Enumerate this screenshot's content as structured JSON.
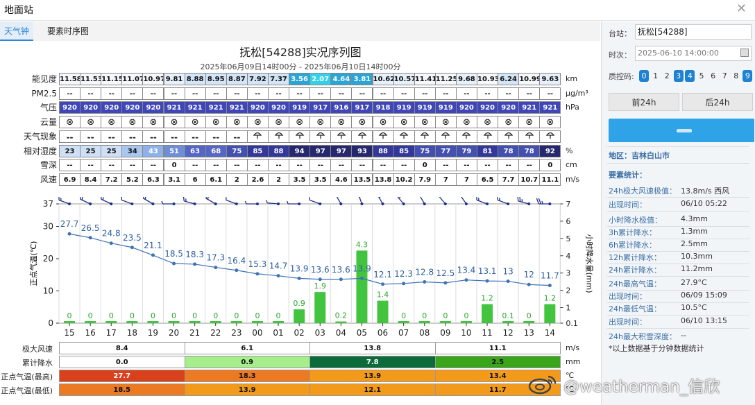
{
  "window": {
    "title": "地面站"
  },
  "tabs": [
    "天气钟",
    "要素时序图"
  ],
  "chart_title": "抚松[54288]实况序列图",
  "chart_subtitle": "2025年06月09日14时00分 - 2025年06月10日14时00分",
  "hours": [
    "15",
    "16",
    "17",
    "18",
    "19",
    "20",
    "21",
    "22",
    "23",
    "00",
    "01",
    "02",
    "03",
    "04",
    "05",
    "06",
    "07",
    "08",
    "09",
    "10",
    "11",
    "12",
    "13",
    "14"
  ],
  "rows": [
    {
      "label": "能见度",
      "unit": "km",
      "kind": "vis",
      "values": [
        "11.58",
        "11.53",
        "11.15",
        "11.07",
        "10.97",
        "9.81",
        "8.88",
        "8.95",
        "8.87",
        "7.92",
        "7.37",
        "3.56",
        "2.07",
        "4.64",
        "3.81",
        "10.62",
        "10.57",
        "11.41",
        "11.25",
        "9.68",
        "10.93",
        "6.24",
        "10.99",
        "9.63"
      ]
    },
    {
      "label": "PM2.5",
      "unit": "μg/m³",
      "kind": "plain",
      "values": [
        "--",
        "--",
        "--",
        "--",
        "--",
        "--",
        "--",
        "--",
        "--",
        "--",
        "--",
        "--",
        "--",
        "--",
        "--",
        "--",
        "--",
        "--",
        "--",
        "--",
        "--",
        "--",
        "--",
        "--"
      ]
    },
    {
      "label": "气压",
      "unit": "hPa",
      "kind": "pres",
      "values": [
        "920",
        "920",
        "920",
        "920",
        "920",
        "921",
        "921",
        "921",
        "921",
        "920",
        "920",
        "919",
        "917",
        "916",
        "917",
        "918",
        "919",
        "919",
        "919",
        "920",
        "920",
        "920",
        "921",
        "921"
      ]
    },
    {
      "label": "云量",
      "unit": "",
      "kind": "cloud",
      "values": [
        "⊗",
        "⊗",
        "⊗",
        "⊗",
        "⊗",
        "⊗",
        "⊗",
        "⊗",
        "⊗",
        "⊗",
        "⊗",
        "⊗",
        "⊗",
        "⊗",
        "⊗",
        "⊗",
        "⊗",
        "⊗",
        "⊗",
        "⊗",
        "⊗",
        "⊗",
        "⊗",
        "⊗"
      ]
    },
    {
      "label": "天气现象",
      "unit": "",
      "kind": "wx",
      "values": [
        "--",
        "--",
        "--",
        "--",
        "--",
        "--",
        "--",
        "--",
        "--",
        "rain",
        "rain",
        "rain",
        "rain",
        "rain",
        "rain",
        "rain",
        "rain",
        "rain",
        "rain",
        "rain",
        "rain",
        "rain",
        "rain",
        "rain"
      ]
    },
    {
      "label": "相对湿度",
      "unit": "%",
      "kind": "rh",
      "values": [
        "23",
        "25",
        "25",
        "34",
        "43",
        "51",
        "63",
        "68",
        "75",
        "85",
        "88",
        "94",
        "97",
        "97",
        "93",
        "88",
        "85",
        "75",
        "77",
        "79",
        "81",
        "78",
        "78",
        "92"
      ]
    },
    {
      "label": "雪深",
      "unit": "cm",
      "kind": "plain",
      "values": [
        "--",
        "--",
        "--",
        "--",
        "--",
        "0",
        "--",
        "--",
        "--",
        "--",
        "--",
        "--",
        "--",
        "--",
        "--",
        "--",
        "--",
        "0",
        "--",
        "--",
        "--",
        "--",
        "--",
        "0"
      ]
    },
    {
      "label": "风速",
      "unit": "m/s",
      "kind": "plain",
      "values": [
        "6.9",
        "8.4",
        "7.2",
        "5.2",
        "6.3",
        "3.1",
        "6",
        "6.1",
        "2",
        "2.6",
        "2",
        "3.5",
        "3.5",
        "4.6",
        "13.5",
        "13.8",
        "10.2",
        "7.9",
        "7",
        "7",
        "6.5",
        "7.7",
        "10.7",
        "11.1"
      ]
    }
  ],
  "chart_data": {
    "type": "line",
    "x": [
      "15",
      "16",
      "17",
      "18",
      "19",
      "20",
      "21",
      "22",
      "23",
      "00",
      "01",
      "02",
      "03",
      "04",
      "05",
      "06",
      "07",
      "08",
      "09",
      "10",
      "11",
      "12",
      "13",
      "14"
    ],
    "series": [
      {
        "values": [
          27.7,
          26.5,
          24.8,
          23.5,
          21.1,
          18.5,
          18.3,
          17.3,
          16.4,
          15.3,
          14.7,
          13.9,
          13.6,
          13.6,
          13.9,
          12.1,
          12.3,
          12.8,
          12.5,
          13.4,
          13.1,
          13,
          12,
          11.7
        ]
      },
      {
        "values": [
          0,
          0,
          0,
          0,
          0,
          0,
          0,
          0,
          0,
          0,
          0,
          0.9,
          1.9,
          0.2,
          4.3,
          1.4,
          0,
          0,
          0,
          0,
          1.2,
          0.1,
          0,
          1.2
        ]
      }
    ],
    "y_left": {
      "label": "正点气温(℃)",
      "ticks": [
        "0",
        "10",
        "20",
        "30",
        "37"
      ],
      "range": [
        0,
        37
      ]
    },
    "y_right": {
      "label": "小时降水量(mm)",
      "ticks": [
        "0.1",
        "1",
        "2",
        "3",
        "4",
        "5",
        "6",
        "7"
      ],
      "range": [
        0.1,
        7
      ]
    },
    "wind_dir": [
      290,
      295,
      295,
      290,
      300,
      270,
      285,
      300,
      290,
      270,
      275,
      270,
      290,
      330,
      340,
      330,
      320,
      330,
      320,
      325,
      290,
      290,
      285,
      270
    ],
    "colors": {
      "temp": "#3e73b6",
      "precip": "#43c43f"
    }
  },
  "bottom": {
    "rows": [
      {
        "label": "极大风速",
        "unit": "m/s",
        "cells": [
          "8.4",
          "6.1",
          "13.8",
          "11.1"
        ],
        "colors": [
          "#ffffff",
          "#ffffff",
          "#ffffff",
          "#ffffff"
        ]
      },
      {
        "label": "累计降水",
        "unit": "mm",
        "cells": [
          "0.0",
          "0.9",
          "7.8",
          "2.5"
        ],
        "colors": [
          "#ffffff",
          "#a6ee8c",
          "#0c6b3a",
          "#3aa51a"
        ]
      },
      {
        "label": "正点气温(最高)",
        "unit": "℃",
        "cells": [
          "27.7",
          "18.3",
          "13.9",
          "13.4"
        ],
        "colors": [
          "#d9401c",
          "#eb7a22",
          "#f39a1a",
          "#f39a1a"
        ]
      },
      {
        "label": "正点气温(最低)",
        "unit": "℃",
        "cells": [
          "18.5",
          "13.9",
          "12.1",
          "11.7"
        ],
        "colors": [
          "#eb7a22",
          "#f39a1a",
          "#f39a1a",
          "#f39a1a"
        ]
      }
    ]
  },
  "side": {
    "station_label": "台站：",
    "station_value": "抚松[54288]",
    "time_label": "时次：",
    "time_value": "2025-06-10 14:00:00",
    "qc_label": "质控码:",
    "qc_codes": [
      "0",
      "1",
      "2",
      "3",
      "4",
      "5",
      "6",
      "7",
      "8",
      "9"
    ],
    "qc_on": [
      "0",
      "3",
      "4",
      "9"
    ],
    "prev_btn": "前24h",
    "next_btn": "后24h",
    "region_label": "地区：吉林白山市",
    "stats_title": "要素统计：",
    "stats": [
      {
        "k": "24h极大风速极值：",
        "v": "13.8m/s 西风"
      },
      {
        "k": "出现时间：",
        "v": "06/10 05:22"
      },
      {
        "k": "小时降水极值：",
        "v": "4.3mm"
      },
      {
        "k": "3h累计降水：",
        "v": "1.3mm"
      },
      {
        "k": "6h累计降水：",
        "v": "2.5mm"
      },
      {
        "k": "12h累计降水：",
        "v": "10.3mm"
      },
      {
        "k": "24h累计降水：",
        "v": "11.2mm"
      },
      {
        "k": "24h最高气温：",
        "v": "27.9°C"
      },
      {
        "k": "出现时间：",
        "v": "06/09 15:09"
      },
      {
        "k": "24h最低气温：",
        "v": "10.5°C"
      },
      {
        "k": "出现时间：",
        "v": "06/10 13:15"
      },
      {
        "k": "24h最大积雪深度：",
        "v": "--"
      }
    ],
    "note": "*以上数据基于分钟数据统计"
  },
  "watermark": "@weatherman_信欣"
}
